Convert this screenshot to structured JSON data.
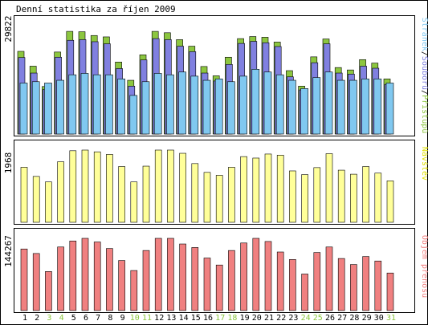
{
  "title": "Denní statistika za říjen 2009",
  "colors": {
    "frame": "#000000",
    "accesses": "#8cc63f",
    "files": "#8080e0",
    "pages": "#80c8f0",
    "visits": "#ffff99",
    "volume": "#f08080",
    "weekend_label": "#8cc63f",
    "weekday_label": "#000000"
  },
  "legend": {
    "right_top": [
      {
        "text": "Stránek",
        "color": "#80c8f0"
      },
      {
        "text": "/",
        "color": "#000000"
      },
      {
        "text": "Souborů",
        "color": "#8080e0"
      },
      {
        "text": "/",
        "color": "#000000"
      },
      {
        "text": "Přístupů",
        "color": "#8cc63f"
      }
    ],
    "right_mid": "Návštěv",
    "right_bottom": "Objem přenosu"
  },
  "chart_data": [
    {
      "type": "bar",
      "panel": "top",
      "y_max_label": "29822",
      "categories": [
        "1",
        "2",
        "3",
        "4",
        "5",
        "6",
        "7",
        "8",
        "9",
        "10",
        "11",
        "12",
        "13",
        "14",
        "15",
        "16",
        "17",
        "18",
        "19",
        "20",
        "21",
        "22",
        "23",
        "24",
        "25",
        "26",
        "27",
        "28",
        "29",
        "30",
        "31"
      ],
      "series": [
        {
          "name": "Přístupů",
          "values": [
            24000,
            19700,
            13800,
            23800,
            29800,
            29700,
            28600,
            28200,
            20900,
            15600,
            23000,
            29800,
            29400,
            27400,
            25500,
            19600,
            16900,
            22300,
            27700,
            28300,
            28100,
            26700,
            18400,
            13900,
            22400,
            27600,
            19300,
            18600,
            21600,
            20600,
            16000
          ]
        },
        {
          "name": "Souborů",
          "values": [
            22200,
            17700,
            12900,
            22300,
            27200,
            27400,
            26800,
            26200,
            19000,
            13900,
            21500,
            27700,
            27400,
            25500,
            23900,
            17700,
            15400,
            20200,
            26300,
            26900,
            26500,
            25400,
            16600,
            12800,
            20700,
            26200,
            17700,
            17400,
            19700,
            19100,
            14400
          ]
        },
        {
          "name": "Stránek",
          "values": [
            3700,
            3800,
            3700,
            3900,
            4300,
            4400,
            4300,
            4300,
            4000,
            2800,
            3800,
            4400,
            4300,
            4500,
            4200,
            3900,
            4000,
            3800,
            4200,
            4700,
            4500,
            4300,
            3900,
            3300,
            4100,
            4500,
            3900,
            3900,
            4000,
            4000,
            3700
          ]
        }
      ],
      "ylim": [
        0,
        29822
      ]
    },
    {
      "type": "bar",
      "panel": "middle",
      "y_max_label": "1968",
      "categories": [
        "1",
        "2",
        "3",
        "4",
        "5",
        "6",
        "7",
        "8",
        "9",
        "10",
        "11",
        "12",
        "13",
        "14",
        "15",
        "16",
        "17",
        "18",
        "19",
        "20",
        "21",
        "22",
        "23",
        "24",
        "25",
        "26",
        "27",
        "28",
        "29",
        "30",
        "31"
      ],
      "series": [
        {
          "name": "Návštěv",
          "values": [
            1500,
            1250,
            1100,
            1650,
            1950,
            1968,
            1920,
            1850,
            1520,
            1100,
            1530,
            1968,
            1968,
            1880,
            1600,
            1360,
            1280,
            1500,
            1790,
            1750,
            1860,
            1830,
            1400,
            1300,
            1490,
            1870,
            1420,
            1310,
            1520,
            1340,
            1130
          ]
        }
      ],
      "ylim": [
        0,
        1968
      ]
    },
    {
      "type": "bar",
      "panel": "bottom",
      "y_max_label": "144267",
      "categories": [
        "1",
        "2",
        "3",
        "4",
        "5",
        "6",
        "7",
        "8",
        "9",
        "10",
        "11",
        "12",
        "13",
        "14",
        "15",
        "16",
        "17",
        "18",
        "19",
        "20",
        "21",
        "22",
        "23",
        "24",
        "25",
        "26",
        "27",
        "28",
        "29",
        "30",
        "31"
      ],
      "series": [
        {
          "name": "Objem přenosu",
          "values": [
            123000,
            114000,
            78000,
            127000,
            139000,
            144267,
            137000,
            124000,
            100000,
            80000,
            120000,
            144267,
            144267,
            133000,
            126000,
            105000,
            91000,
            120000,
            135000,
            144267,
            138000,
            117000,
            102000,
            73000,
            116000,
            127000,
            104000,
            92000,
            108000,
            99000,
            75000
          ]
        }
      ],
      "ylim": [
        0,
        144267
      ]
    }
  ],
  "x_labels": [
    {
      "text": "1",
      "weekend": false
    },
    {
      "text": "2",
      "weekend": false
    },
    {
      "text": "3",
      "weekend": true
    },
    {
      "text": "4",
      "weekend": true
    },
    {
      "text": "5",
      "weekend": false
    },
    {
      "text": "6",
      "weekend": false
    },
    {
      "text": "7",
      "weekend": false
    },
    {
      "text": "8",
      "weekend": false
    },
    {
      "text": "9",
      "weekend": false
    },
    {
      "text": "10",
      "weekend": true
    },
    {
      "text": "11",
      "weekend": true
    },
    {
      "text": "12",
      "weekend": false
    },
    {
      "text": "13",
      "weekend": false
    },
    {
      "text": "14",
      "weekend": false
    },
    {
      "text": "15",
      "weekend": false
    },
    {
      "text": "16",
      "weekend": false
    },
    {
      "text": "17",
      "weekend": true
    },
    {
      "text": "18",
      "weekend": true
    },
    {
      "text": "19",
      "weekend": false
    },
    {
      "text": "20",
      "weekend": false
    },
    {
      "text": "21",
      "weekend": false
    },
    {
      "text": "22",
      "weekend": false
    },
    {
      "text": "23",
      "weekend": false
    },
    {
      "text": "24",
      "weekend": true
    },
    {
      "text": "25",
      "weekend": true
    },
    {
      "text": "26",
      "weekend": false
    },
    {
      "text": "27",
      "weekend": false
    },
    {
      "text": "28",
      "weekend": false
    },
    {
      "text": "29",
      "weekend": false
    },
    {
      "text": "30",
      "weekend": false
    },
    {
      "text": "31",
      "weekend": true
    }
  ]
}
